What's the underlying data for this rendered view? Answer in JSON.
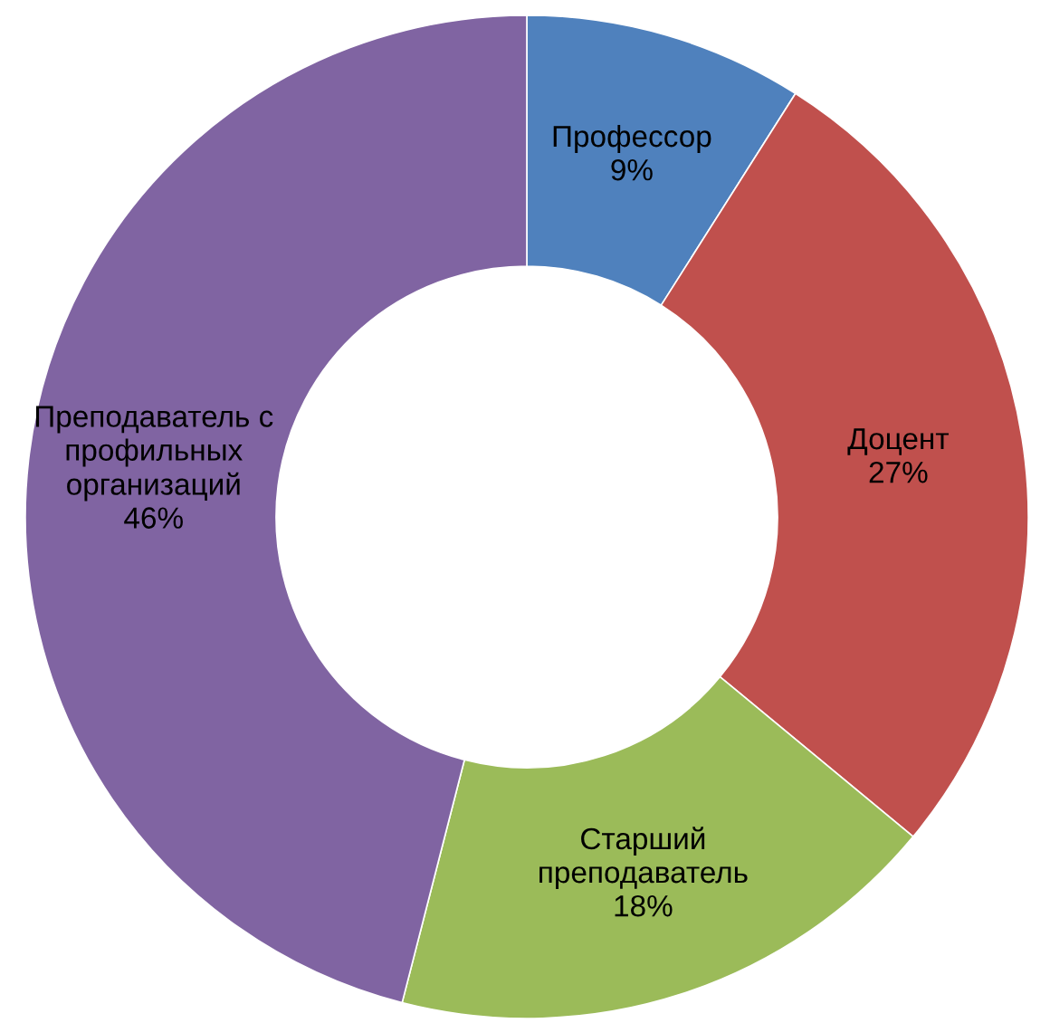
{
  "chart_data": {
    "type": "donut",
    "categories": [
      "Профессор",
      "Доцент",
      "Старший\nпреподаватель",
      "Преподаватель с\nпрофильных\nорганизаций"
    ],
    "values": [
      9,
      27,
      18,
      46
    ],
    "colors": [
      "#4f81bd",
      "#c0504d",
      "#9bbb59",
      "#8064a2"
    ],
    "value_labels": [
      "9%",
      "27%",
      "18%",
      "46%"
    ]
  }
}
